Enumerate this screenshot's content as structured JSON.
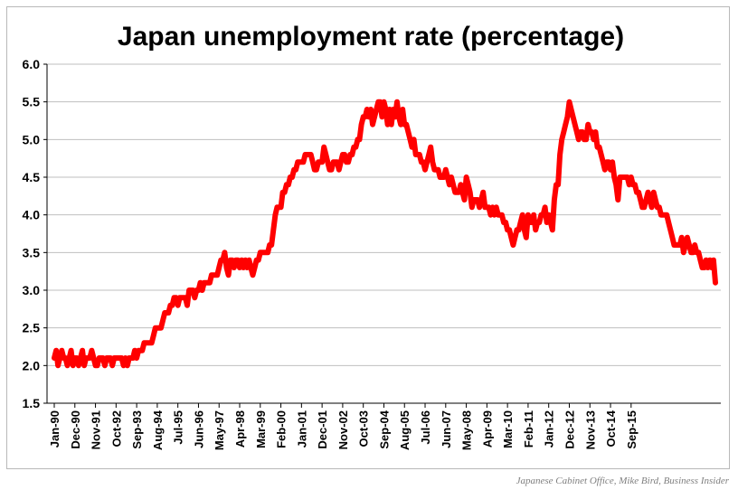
{
  "chart_data": {
    "type": "line",
    "title": "Japan unemployment rate (percentage)",
    "xlabel": "",
    "ylabel": "",
    "ylim": [
      1.5,
      6.0
    ],
    "yticks": [
      "6.0",
      "5.5",
      "5.0",
      "4.5",
      "4.0",
      "3.5",
      "3.0",
      "2.5",
      "2.0",
      "1.5"
    ],
    "grid": true,
    "legend": "none",
    "line_color": "#ff0000",
    "xtick_labels": [
      "Jan-90",
      "Dec-90",
      "Nov-91",
      "Oct-92",
      "Sep-93",
      "Aug-94",
      "Jul-95",
      "Jun-96",
      "May-97",
      "Apr-98",
      "Mar-99",
      "Feb-00",
      "Jan-01",
      "Dec-01",
      "Nov-02",
      "Oct-03",
      "Sep-04",
      "Aug-05",
      "Jul-06",
      "Jun-07",
      "May-08",
      "Apr-09",
      "Mar-10",
      "Feb-11",
      "Jan-12",
      "Dec-12",
      "Nov-13",
      "Oct-14",
      "Sep-15"
    ],
    "x_start": "Jan-90",
    "x_end": "Sep-15",
    "series": [
      {
        "values": [
          2.1,
          2.2,
          2.0,
          2.1,
          2.2,
          2.1,
          2.1,
          2.0,
          2.1,
          2.2,
          2.0,
          2.1,
          2.1,
          2.0,
          2.1,
          2.2,
          2.0,
          2.1,
          2.1,
          2.1,
          2.2,
          2.1,
          2.0,
          2.0,
          2.1,
          2.1,
          2.1,
          2.0,
          2.1,
          2.1,
          2.1,
          2.0,
          2.1,
          2.1,
          2.1,
          2.1,
          2.1,
          2.0,
          2.1,
          2.0,
          2.1,
          2.1,
          2.1,
          2.2,
          2.1,
          2.2,
          2.2,
          2.2,
          2.3,
          2.3,
          2.3,
          2.3,
          2.3,
          2.4,
          2.5,
          2.5,
          2.5,
          2.5,
          2.6,
          2.7,
          2.7,
          2.7,
          2.8,
          2.8,
          2.9,
          2.9,
          2.8,
          2.9,
          2.9,
          2.9,
          2.9,
          2.8,
          3.0,
          3.0,
          3.0,
          2.9,
          3.0,
          3.0,
          3.1,
          3.0,
          3.1,
          3.1,
          3.1,
          3.1,
          3.2,
          3.2,
          3.2,
          3.2,
          3.3,
          3.4,
          3.4,
          3.5,
          3.3,
          3.2,
          3.4,
          3.4,
          3.3,
          3.4,
          3.4,
          3.3,
          3.4,
          3.3,
          3.4,
          3.3,
          3.4,
          3.3,
          3.2,
          3.3,
          3.4,
          3.4,
          3.5,
          3.5,
          3.5,
          3.5,
          3.5,
          3.6,
          3.6,
          3.8,
          4.0,
          4.1,
          4.1,
          4.1,
          4.3,
          4.3,
          4.4,
          4.4,
          4.5,
          4.5,
          4.6,
          4.6,
          4.7,
          4.7,
          4.7,
          4.7,
          4.8,
          4.8,
          4.8,
          4.8,
          4.7,
          4.6,
          4.6,
          4.7,
          4.7,
          4.7,
          4.9,
          4.8,
          4.7,
          4.6,
          4.6,
          4.7,
          4.7,
          4.7,
          4.6,
          4.7,
          4.8,
          4.8,
          4.7,
          4.7,
          4.8,
          4.8,
          4.9,
          4.9,
          5.0,
          5.0,
          5.2,
          5.3,
          5.3,
          5.4,
          5.3,
          5.4,
          5.2,
          5.3,
          5.4,
          5.5,
          5.5,
          5.3,
          5.5,
          5.4,
          5.2,
          5.4,
          5.2,
          5.4,
          5.3,
          5.5,
          5.3,
          5.2,
          5.4,
          5.2,
          5.2,
          5.1,
          5.0,
          4.9,
          5.0,
          4.8,
          4.8,
          4.8,
          4.7,
          4.7,
          4.6,
          4.7,
          4.8,
          4.9,
          4.7,
          4.6,
          4.6,
          4.6,
          4.5,
          4.5,
          4.5,
          4.6,
          4.5,
          4.4,
          4.5,
          4.4,
          4.3,
          4.3,
          4.3,
          4.4,
          4.3,
          4.2,
          4.5,
          4.4,
          4.3,
          4.1,
          4.2,
          4.2,
          4.2,
          4.1,
          4.2,
          4.3,
          4.1,
          4.1,
          4.1,
          4.0,
          4.1,
          4.0,
          4.1,
          4.0,
          4.0,
          4.0,
          3.9,
          3.9,
          3.8,
          3.8,
          3.7,
          3.6,
          3.7,
          3.8,
          3.8,
          3.9,
          4.0,
          3.8,
          3.7,
          4.0,
          3.9,
          3.9,
          4.0,
          3.8,
          3.9,
          3.9,
          4.0,
          4.0,
          4.1,
          3.9,
          4.0,
          3.9,
          3.8,
          4.2,
          4.4,
          4.4,
          4.8,
          5.0,
          5.1,
          5.2,
          5.3,
          5.5,
          5.4,
          5.3,
          5.2,
          5.1,
          5.0,
          5.1,
          5.1,
          5.0,
          5.0,
          5.2,
          5.1,
          5.1,
          5.0,
          5.1,
          4.9,
          4.9,
          4.8,
          4.7,
          4.6,
          4.7,
          4.7,
          4.6,
          4.7,
          4.5,
          4.4,
          4.2,
          4.5,
          4.5,
          4.5,
          4.5,
          4.5,
          4.4,
          4.5,
          4.4,
          4.4,
          4.3,
          4.3,
          4.2,
          4.1,
          4.1,
          4.2,
          4.3,
          4.2,
          4.1,
          4.3,
          4.2,
          4.1,
          4.1,
          4.0,
          4.0,
          4.0,
          4.0,
          3.9,
          3.8,
          3.7,
          3.6,
          3.6,
          3.6,
          3.6,
          3.7,
          3.5,
          3.6,
          3.7,
          3.6,
          3.5,
          3.5,
          3.6,
          3.5,
          3.5,
          3.4,
          3.3,
          3.3,
          3.4,
          3.3,
          3.4,
          3.3,
          3.4,
          3.1
        ]
      }
    ]
  },
  "source_note": "Japanese Cabinet Office, Mike Bird, Business Insider"
}
